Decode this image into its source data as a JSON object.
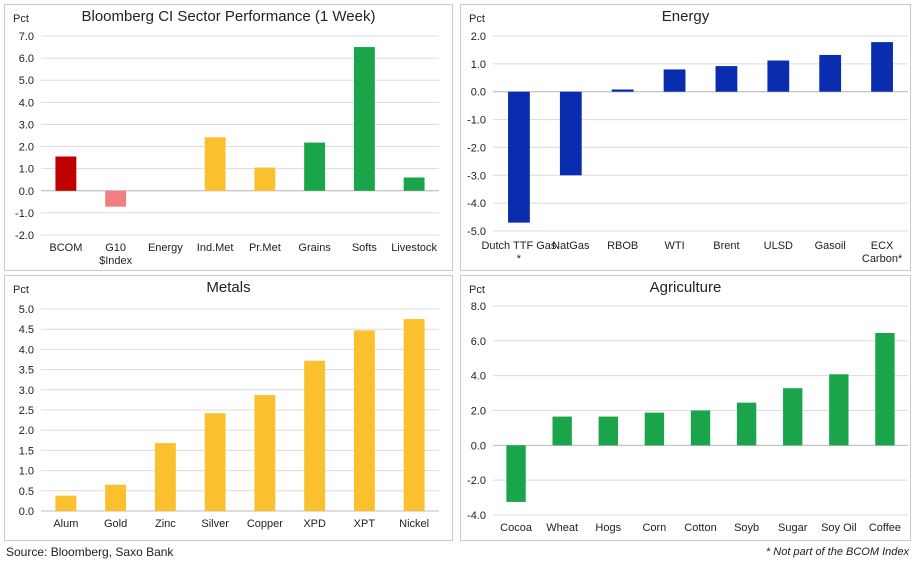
{
  "source": "Source: Bloomberg, Saxo Bank",
  "footnote": "* Not part of the BCOM Index",
  "chart_data": [
    {
      "type": "bar",
      "title": "Bloomberg CI Sector Performance (1 Week)",
      "ylabel": "Pct",
      "ylim": [
        -2.0,
        7.0
      ],
      "ytick_step": 1.0,
      "grid": true,
      "categories": [
        "BCOM",
        "G10 $Index",
        "Energy",
        "Ind.Met",
        "Pr.Met",
        "Grains",
        "Softs",
        "Livestock"
      ],
      "values": [
        1.55,
        -0.72,
        0.0,
        2.42,
        1.05,
        2.18,
        6.5,
        0.6
      ],
      "colors": [
        "#c00000",
        "#f08080",
        "#f5b400",
        "#fbc02d",
        "#fbc02d",
        "#1aa54a",
        "#1aa54a",
        "#1aa54a"
      ]
    },
    {
      "type": "bar",
      "title": "Energy",
      "ylabel": "Pct",
      "ylim": [
        -5.0,
        2.0
      ],
      "ytick_step": 1.0,
      "grid": true,
      "categories": [
        "Dutch TTF Gas *",
        "NatGas",
        "RBOB",
        "WTI",
        "Brent",
        "ULSD",
        "Gasoil",
        "ECX Carbon*"
      ],
      "values": [
        -4.7,
        -3.0,
        0.08,
        0.8,
        0.92,
        1.12,
        1.32,
        1.78
      ],
      "colors": [
        "#0a2db0",
        "#0a2db0",
        "#0a2db0",
        "#0a2db0",
        "#0a2db0",
        "#0a2db0",
        "#0a2db0",
        "#0a2db0"
      ]
    },
    {
      "type": "bar",
      "title": "Metals",
      "ylabel": "Pct",
      "ylim": [
        0.0,
        5.0
      ],
      "ytick_step": 0.5,
      "grid": true,
      "categories": [
        "Alum",
        "Gold",
        "Zinc",
        "Silver",
        "Copper",
        "XPD",
        "XPT",
        "Nickel"
      ],
      "values": [
        0.38,
        0.65,
        1.68,
        2.42,
        2.87,
        3.72,
        4.47,
        4.75
      ],
      "colors": [
        "#fbc02d",
        "#fbc02d",
        "#fbc02d",
        "#fbc02d",
        "#fbc02d",
        "#fbc02d",
        "#fbc02d",
        "#fbc02d"
      ]
    },
    {
      "type": "bar",
      "title": "Agriculture",
      "ylabel": "Pct",
      "ylim": [
        -4.0,
        8.0
      ],
      "ytick_step": 2.0,
      "grid": true,
      "categories": [
        "Cocoa",
        "Wheat",
        "Hogs",
        "Corn",
        "Cotton",
        "Soyb",
        "Sugar",
        "Soy Oil",
        "Coffee"
      ],
      "values": [
        -3.25,
        1.65,
        1.65,
        1.88,
        2.0,
        2.45,
        3.28,
        4.08,
        6.45
      ],
      "colors": [
        "#1aa54a",
        "#1aa54a",
        "#1aa54a",
        "#1aa54a",
        "#1aa54a",
        "#1aa54a",
        "#1aa54a",
        "#1aa54a",
        "#1aa54a"
      ]
    }
  ]
}
